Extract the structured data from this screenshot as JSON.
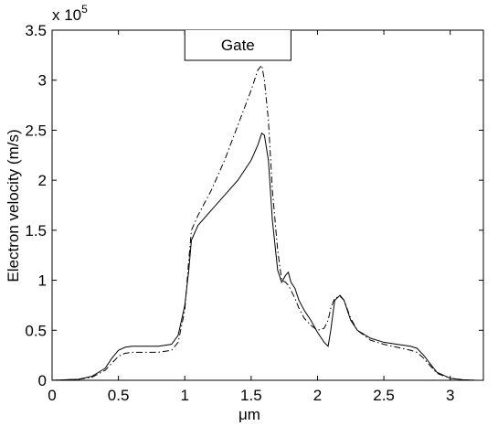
{
  "chart_data": {
    "type": "line",
    "ylabel": "Electron velocity (m/s)",
    "xlabel": "μm",
    "y_multiplier": {
      "base": "x 10",
      "exponent": "5"
    },
    "gate": {
      "label": "Gate",
      "xrange": [
        1.0,
        1.8
      ]
    },
    "x": [
      0,
      0.2,
      0.3,
      0.4,
      0.45,
      0.5,
      0.55,
      0.6,
      0.7,
      0.8,
      0.9,
      0.95,
      1.0,
      1.03,
      1.05,
      1.1,
      1.2,
      1.3,
      1.4,
      1.5,
      1.55,
      1.58,
      1.6,
      1.63,
      1.66,
      1.7,
      1.73,
      1.76,
      1.78,
      1.8,
      1.83,
      1.86,
      1.9,
      1.95,
      2.0,
      2.05,
      2.08,
      2.1,
      2.13,
      2.17,
      2.2,
      2.25,
      2.3,
      2.4,
      2.5,
      2.6,
      2.7,
      2.75,
      2.8,
      2.9,
      3.0,
      3.1,
      3.2
    ],
    "series": [
      {
        "color": "#000000",
        "dash": "solid",
        "values": [
          0,
          0.01,
          0.04,
          0.12,
          0.22,
          0.3,
          0.33,
          0.34,
          0.34,
          0.34,
          0.36,
          0.45,
          0.75,
          1.1,
          1.4,
          1.55,
          1.7,
          1.85,
          2.0,
          2.2,
          2.35,
          2.47,
          2.45,
          2.2,
          1.6,
          1.1,
          0.98,
          1.05,
          1.08,
          0.98,
          0.92,
          0.8,
          0.7,
          0.6,
          0.48,
          0.38,
          0.34,
          0.5,
          0.8,
          0.85,
          0.8,
          0.6,
          0.5,
          0.42,
          0.38,
          0.36,
          0.34,
          0.32,
          0.25,
          0.08,
          0.02,
          0.005,
          0
        ]
      },
      {
        "color": "#000000",
        "dash": "dashdot",
        "values": [
          0,
          0.01,
          0.03,
          0.1,
          0.17,
          0.24,
          0.27,
          0.28,
          0.28,
          0.28,
          0.3,
          0.38,
          0.7,
          1.2,
          1.5,
          1.65,
          1.9,
          2.2,
          2.55,
          2.9,
          3.1,
          3.15,
          3.0,
          2.6,
          1.9,
          1.3,
          1.0,
          0.98,
          0.95,
          0.9,
          0.82,
          0.72,
          0.62,
          0.55,
          0.5,
          0.52,
          0.6,
          0.72,
          0.82,
          0.84,
          0.8,
          0.62,
          0.5,
          0.4,
          0.36,
          0.33,
          0.3,
          0.28,
          0.22,
          0.07,
          0.02,
          0.005,
          0
        ]
      }
    ],
    "xlim": [
      0,
      3.25
    ],
    "xticks": [
      0,
      0.5,
      1,
      1.5,
      2,
      2.5,
      3
    ],
    "ylim": [
      0,
      3.5
    ],
    "yticks": [
      0,
      0.5,
      1,
      1.5,
      2,
      2.5,
      3,
      3.5
    ],
    "grid": false
  }
}
